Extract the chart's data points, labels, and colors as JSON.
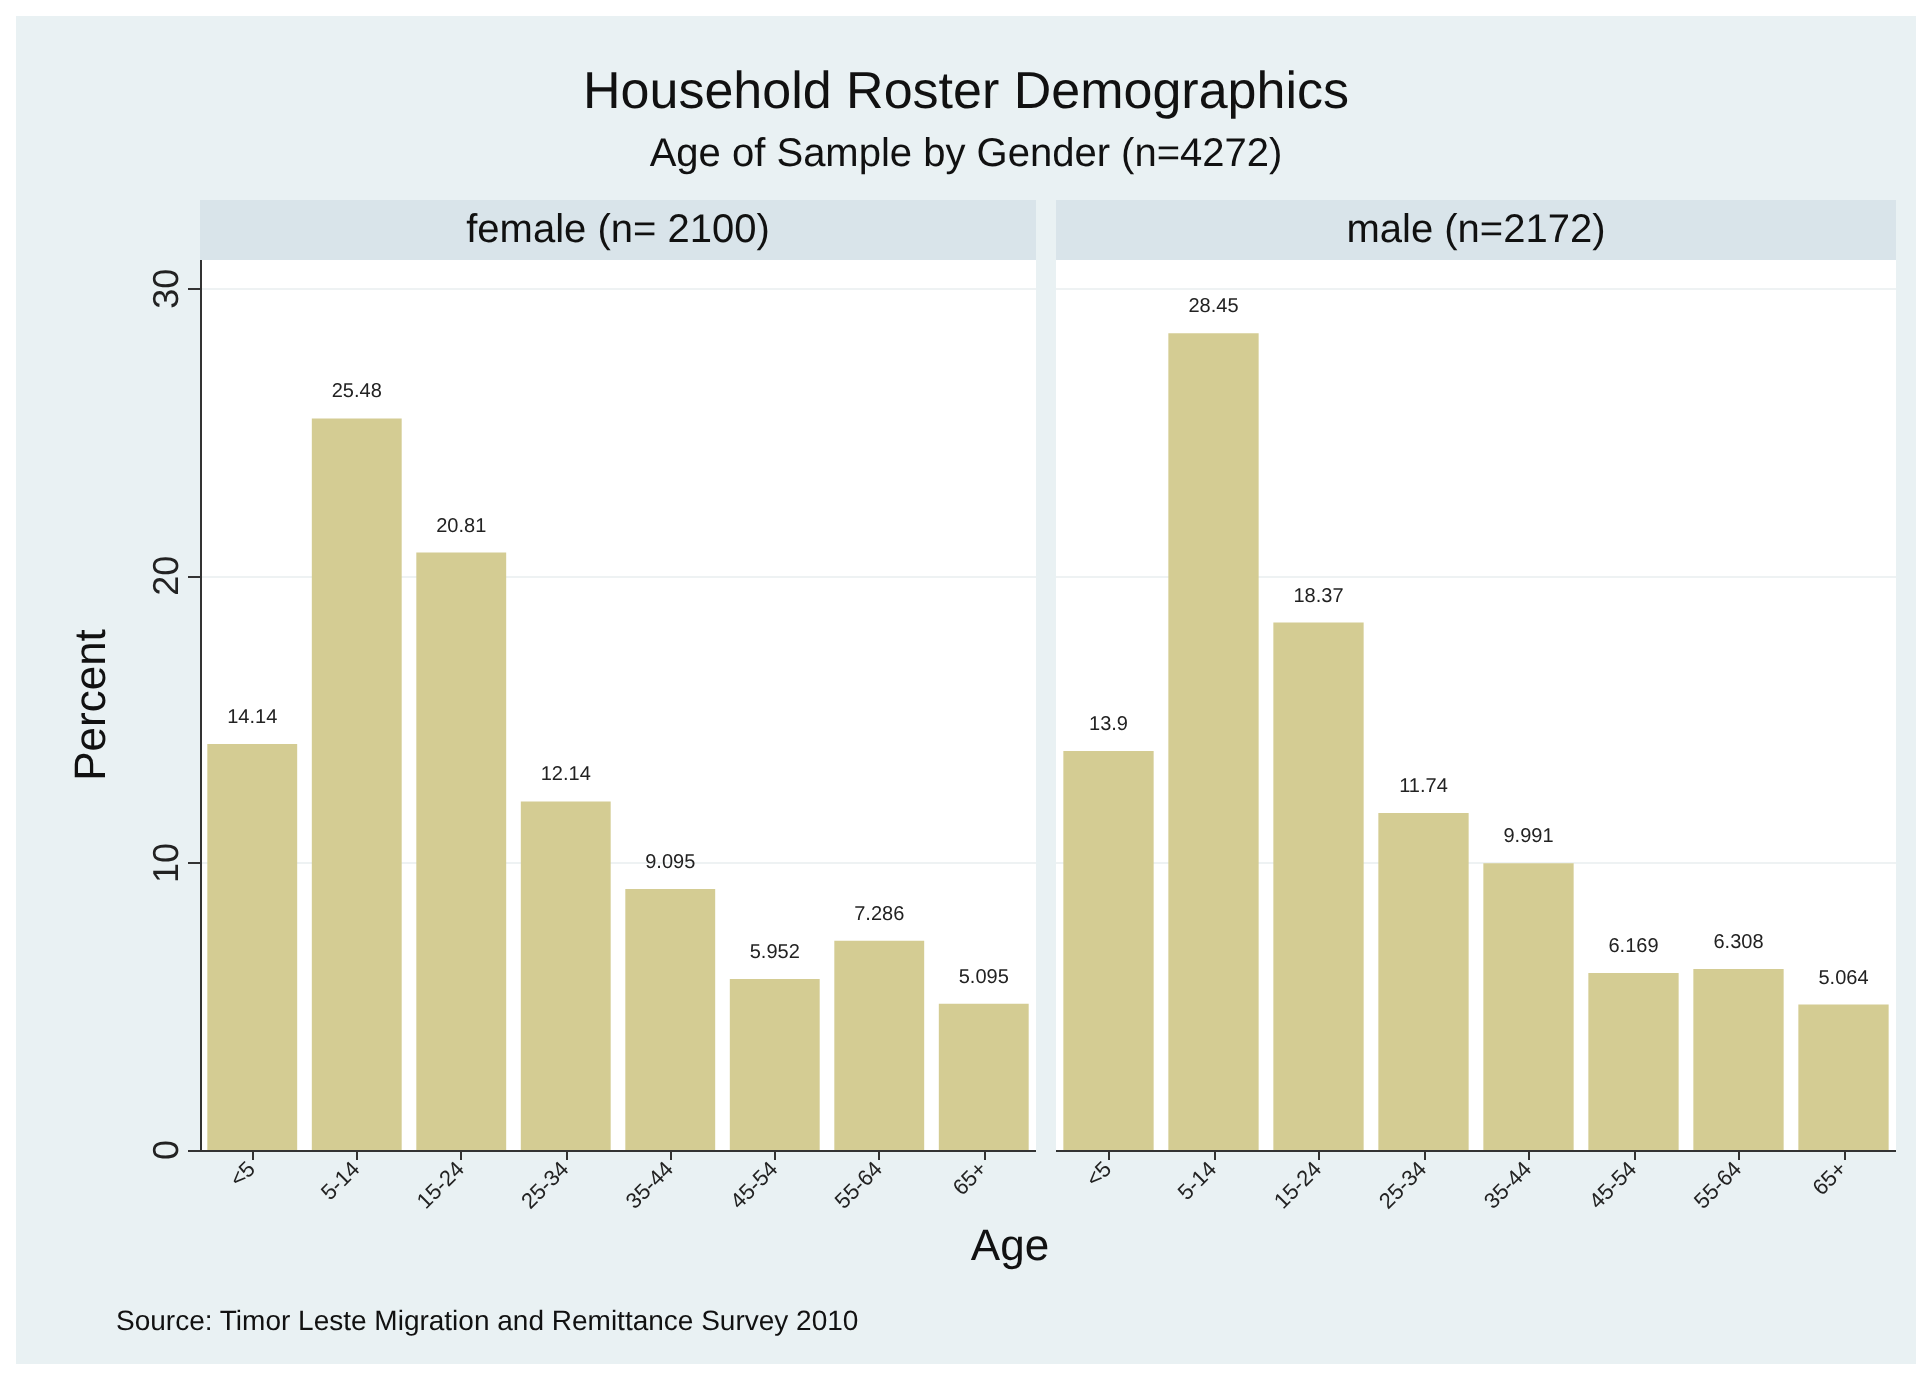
{
  "chart_data": [
    {
      "type": "other",
      "title": "Household Roster Demographics",
      "subtitle": "Age of Sample by Gender (n=4272)",
      "annotations": [
        "Source: Timor Leste Migration and Remittance Survey 2010"
      ]
    },
    {
      "type": "bar",
      "title": "female (n= 2100)",
      "xlabel": "Age",
      "ylabel": "Percent",
      "categories": [
        "<5",
        "5-14",
        "15-24",
        "25-34",
        "35-44",
        "45-54",
        "55-64",
        "65+"
      ],
      "values": [
        14.14,
        25.48,
        20.81,
        12.14,
        9.095,
        5.952,
        7.286,
        5.095
      ],
      "color": "#d4cc93",
      "ylim": [
        0,
        31
      ],
      "yticks": [
        0,
        10,
        20,
        30
      ],
      "grid": "y",
      "data_labels": true
    },
    {
      "type": "bar",
      "title": "male (n=2172)",
      "categories": [
        "<5",
        "5-14",
        "15-24",
        "25-34",
        "35-44",
        "45-54",
        "55-64",
        "65+"
      ],
      "values": [
        13.9,
        28.45,
        18.37,
        11.74,
        9.991,
        6.169,
        6.308,
        5.064
      ],
      "color": "#d4cc93",
      "ylim": [
        0,
        31
      ],
      "yticks": [
        0,
        10,
        20,
        30
      ],
      "grid": "y",
      "data_labels": true,
      "tick_labels": "x"
    }
  ]
}
